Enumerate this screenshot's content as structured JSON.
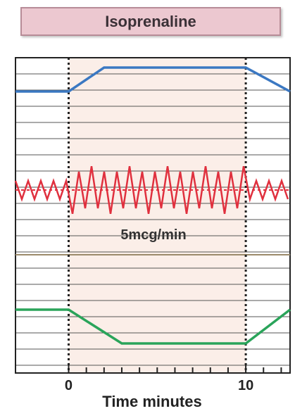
{
  "title": "Isoprenaline",
  "chart_data": {
    "type": "line",
    "title": "Isoprenaline",
    "xlabel": "Time minutes",
    "ylabel": "",
    "xlim": [
      -3,
      12.5
    ],
    "x_ticks": [
      0,
      10
    ],
    "shaded_interval": [
      0,
      10
    ],
    "annotation": "5mcg/min",
    "grid": true,
    "colors": {
      "top": "#3b78c2",
      "middle": "#e0303e",
      "bottom": "#2aa45a",
      "shade": "#fbeee8"
    },
    "series": [
      {
        "x": [
          -3,
          0,
          2,
          10,
          12.5
        ],
        "y": [
          0,
          0,
          1,
          1,
          0
        ]
      },
      {
        "x": [
          -3,
          12.5
        ],
        "y": [
          0,
          0
        ]
      },
      {
        "x": [
          -3,
          0,
          3,
          10,
          12.5
        ],
        "y": [
          1,
          1,
          0,
          0,
          1
        ]
      }
    ]
  }
}
